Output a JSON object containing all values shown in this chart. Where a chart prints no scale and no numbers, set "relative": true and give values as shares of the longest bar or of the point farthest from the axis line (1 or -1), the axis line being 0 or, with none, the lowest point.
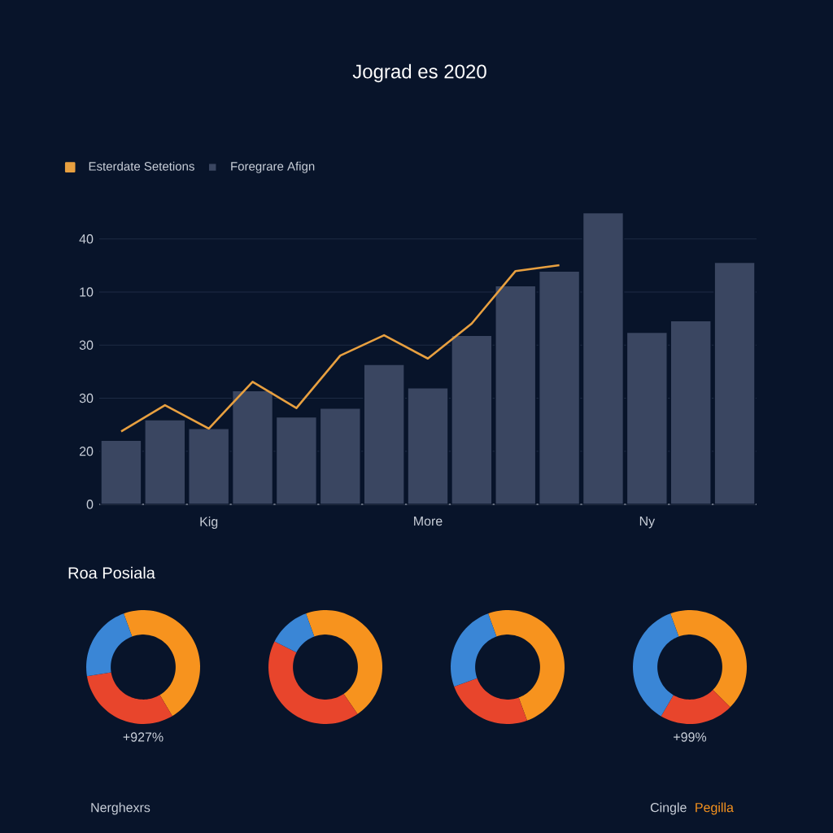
{
  "chart_data": [
    {
      "type": "bar",
      "title": "Jograd es 2020",
      "categories": [
        null,
        null,
        "Kig",
        null,
        null,
        null,
        null,
        "More",
        null,
        null,
        null,
        null,
        "Ny",
        null,
        null
      ],
      "series": [
        {
          "name": "Esterdate Setetions",
          "type": "line",
          "color": "#e8a040",
          "values": [
            0.25,
            0.34,
            0.26,
            0.42,
            0.33,
            0.51,
            0.58,
            0.5,
            0.62,
            0.8,
            0.82,
            null,
            null,
            null,
            null
          ]
        },
        {
          "name": "Foregrare Afign",
          "type": "bar",
          "color": "#3a4661",
          "values": [
            0.22,
            0.29,
            0.26,
            0.39,
            0.3,
            0.33,
            0.48,
            0.4,
            0.58,
            0.75,
            0.8,
            1,
            0.59,
            0.63,
            0.83
          ]
        }
      ],
      "relative": true,
      "annotations": [
        "0",
        "20",
        "30",
        "30",
        "10",
        "40"
      ],
      "grid": "y",
      "legend": "top left"
    },
    {
      "type": "donut",
      "title": "Roa Posiala",
      "categories": [
        null,
        null,
        null
      ],
      "values": [
        47,
        31,
        22
      ],
      "colors": [
        "#f7931e",
        "#e8452c",
        "#3a86d6"
      ],
      "annotations": [
        "+927%",
        "Nerghexrs"
      ]
    },
    {
      "type": "donut",
      "categories": [
        null,
        null,
        null
      ],
      "values": [
        46,
        42,
        12
      ],
      "colors": [
        "#f7931e",
        "#e8452c",
        "#3a86d6"
      ]
    },
    {
      "type": "donut",
      "categories": [
        null,
        null,
        null
      ],
      "values": [
        50,
        25,
        25
      ],
      "colors": [
        "#f7931e",
        "#e8452c",
        "#3a86d6"
      ]
    },
    {
      "type": "donut",
      "categories": [
        null,
        null,
        null
      ],
      "values": [
        43,
        21,
        36
      ],
      "colors": [
        "#f7931e",
        "#e8452c",
        "#3a86d6"
      ],
      "annotations": [
        "+99%",
        "Cingle",
        "Pegilla"
      ]
    }
  ]
}
